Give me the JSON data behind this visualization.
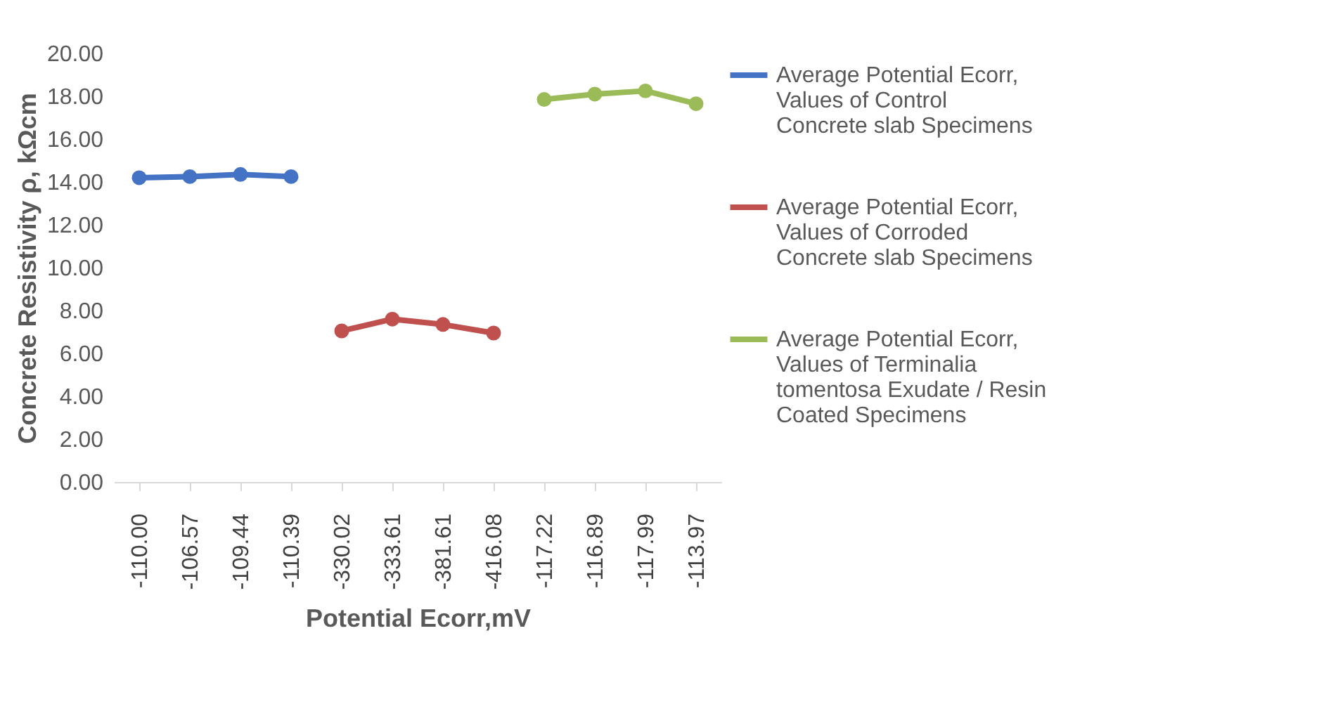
{
  "chart_data": {
    "type": "line",
    "xlabel": "Potential  Ecorr,mV",
    "ylabel": "Concrete Resistivity ρ, kΩcm",
    "categories": [
      "-110.00",
      "-106.57",
      "-109.44",
      "-110.39",
      "-330.02",
      "-333.61",
      "-381.61",
      "-416.08",
      "-117.22",
      "-116.89",
      "-117.99",
      "-113.97"
    ],
    "series": [
      {
        "name": "Average Potential  Ecorr, Values of   Control Concrete slab Specimens",
        "color": "#4472c4",
        "values": [
          14.2,
          14.25,
          14.35,
          14.25,
          null,
          null,
          null,
          null,
          null,
          null,
          null,
          null
        ]
      },
      {
        "name": "Average Potential  Ecorr, Values of  Corroded Concrete slab Specimens",
        "color": "#c0504d",
        "values": [
          null,
          null,
          null,
          null,
          7.05,
          7.6,
          7.35,
          6.95,
          null,
          null,
          null,
          null
        ]
      },
      {
        "name": "Average Potential  Ecorr, Values of Terminalia tomentosa  Exudate / Resin Coated Specimens",
        "color": "#9bbb59",
        "values": [
          null,
          null,
          null,
          null,
          null,
          null,
          null,
          null,
          17.85,
          18.1,
          18.25,
          17.65
        ]
      }
    ],
    "ylim": [
      0,
      20
    ],
    "yticks": [
      {
        "value": 0,
        "label": "0.00"
      },
      {
        "value": 2,
        "label": "2.00"
      },
      {
        "value": 4,
        "label": "4.00"
      },
      {
        "value": 6,
        "label": "6.00"
      },
      {
        "value": 8,
        "label": "8.00"
      },
      {
        "value": 10,
        "label": "10.00"
      },
      {
        "value": 12,
        "label": "12.00"
      },
      {
        "value": 14,
        "label": "14.00"
      },
      {
        "value": 16,
        "label": "16.00"
      },
      {
        "value": 18,
        "label": "18.00"
      },
      {
        "value": 20,
        "label": "20.00"
      }
    ],
    "grid": false,
    "legend": "right",
    "marker": "circle",
    "line_style": "solid"
  }
}
